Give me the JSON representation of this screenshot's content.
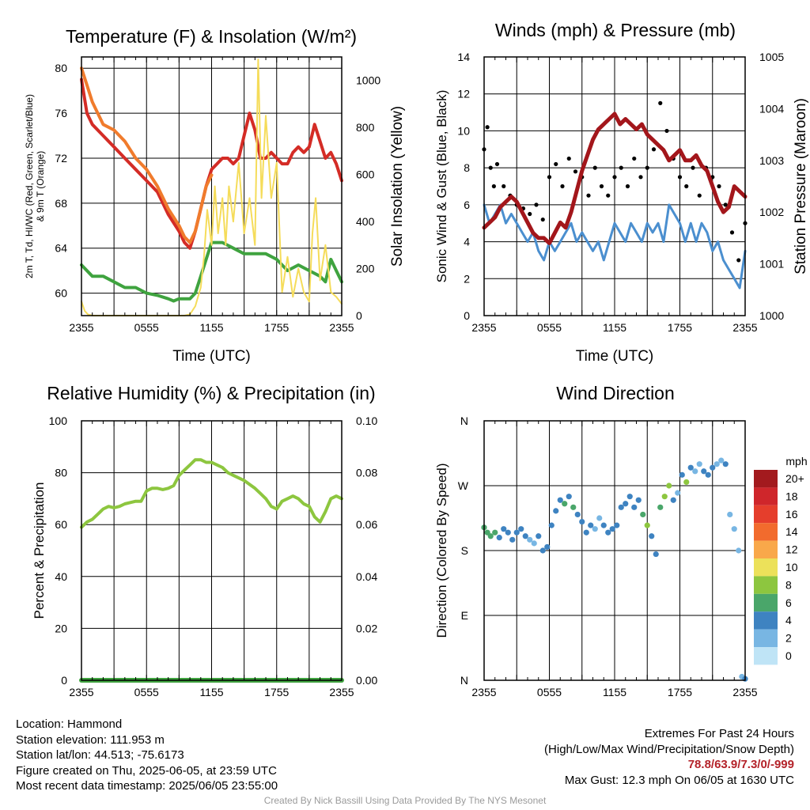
{
  "chart_data": [
    {
      "type": "line",
      "title": "Temperature (F) & Insolation (W/m²)",
      "xlabel": "Time (UTC)",
      "ylabel_left": [
        "2m T, Td, HI/WC (Red, Green, Scarlet/Blue)",
        "& 9m T (Orange)"
      ],
      "ylabel_right": "Solar Insolation (Yellow)",
      "x_tick_labels": [
        "2355",
        "0555",
        "1155",
        "1755",
        "2355"
      ],
      "ylim_left": [
        58,
        81
      ],
      "yticks_left": [
        60,
        64,
        68,
        72,
        76,
        80
      ],
      "ylim_right": [
        0,
        1100
      ],
      "yticks_right": [
        0,
        200,
        400,
        600,
        800,
        1000
      ],
      "xlim_hours": [
        0,
        24
      ],
      "grid": true,
      "colors": {
        "red": "#d42c26",
        "orange": "#f07b2c",
        "green": "#3fa33f",
        "yellow": "#f5dc5a"
      },
      "series": [
        {
          "name": "2m T",
          "axis": "left",
          "color": "#d42c26",
          "width": 4,
          "x": [
            0,
            0.5,
            1,
            2,
            3,
            4,
            5,
            6,
            7,
            8,
            9,
            9.5,
            10,
            10.5,
            11,
            11.5,
            12,
            12.5,
            13,
            13.5,
            14,
            14.5,
            15,
            15.5,
            16,
            16.5,
            17,
            17.5,
            18,
            18.5,
            19,
            19.5,
            20,
            20.5,
            21,
            21.5,
            22,
            22.5,
            23,
            23.5,
            24
          ],
          "y": [
            79,
            76,
            75,
            74,
            73,
            72,
            71,
            70,
            69,
            67,
            65.5,
            64.5,
            64,
            65.5,
            67.5,
            69.5,
            71,
            71.5,
            72,
            72,
            71.5,
            72,
            74,
            76,
            74.5,
            72,
            72,
            72.5,
            72,
            71.5,
            71.5,
            72.5,
            73,
            72.5,
            73,
            75,
            73.5,
            72,
            72.5,
            71.5,
            70
          ]
        },
        {
          "name": "9m T",
          "axis": "left",
          "color": "#f07b2c",
          "width": 4,
          "x": [
            0,
            0.5,
            1,
            2,
            3,
            4,
            5,
            6,
            7,
            8,
            9,
            9.5,
            10,
            10.5,
            11,
            11.5,
            12
          ],
          "y": [
            80,
            78.5,
            77,
            75,
            74.5,
            73.5,
            72,
            71,
            69.5,
            67.5,
            66,
            65,
            64.5,
            65.5,
            67.5,
            69.5,
            70.5
          ]
        },
        {
          "name": "Td",
          "axis": "left",
          "color": "#3fa33f",
          "width": 4,
          "x": [
            0,
            1,
            2,
            3,
            4,
            5,
            6,
            7,
            8,
            8.5,
            9,
            10,
            10.5,
            11,
            11.5,
            12,
            13,
            14,
            15,
            16,
            17,
            18,
            19,
            20,
            21,
            22,
            22.5,
            23,
            23.5,
            24
          ],
          "y": [
            62.5,
            61.5,
            61.5,
            61,
            60.5,
            60.5,
            60,
            59.8,
            59.5,
            59.3,
            59.5,
            59.5,
            60,
            61.5,
            63,
            64.5,
            64.5,
            64,
            63.5,
            63.5,
            63.5,
            63,
            62,
            62.5,
            62,
            61.5,
            61,
            63,
            62,
            61
          ]
        },
        {
          "name": "Solar Insolation",
          "axis": "right",
          "color": "#f5dc5a",
          "width": 2,
          "x": [
            0,
            0.3,
            0.6,
            1,
            2,
            4,
            6,
            8,
            9,
            9.5,
            10,
            10.5,
            11,
            11.3,
            11.6,
            12,
            12.3,
            12.6,
            13,
            13.3,
            13.6,
            14,
            14.5,
            15,
            15.5,
            16,
            16.3,
            16.6,
            17,
            17.5,
            18,
            18.5,
            19,
            19.5,
            20,
            20.5,
            21,
            21.3,
            21.6,
            22,
            22.5,
            23,
            23.5,
            24
          ],
          "y": [
            60,
            20,
            5,
            0,
            0,
            0,
            0,
            0,
            0,
            0,
            5,
            40,
            120,
            250,
            450,
            300,
            550,
            350,
            500,
            300,
            550,
            400,
            650,
            350,
            500,
            300,
            1090,
            500,
            850,
            500,
            650,
            100,
            250,
            80,
            200,
            100,
            60,
            350,
            500,
            150,
            300,
            100,
            80,
            50
          ]
        }
      ]
    },
    {
      "type": "line",
      "title": "Winds (mph) & Pressure (mb)",
      "xlabel": "Time (UTC)",
      "ylabel_left": "Sonic Wind & Gust (Blue, Black)",
      "ylabel_right": "Station Pressure (Maroon)",
      "x_tick_labels": [
        "2355",
        "0555",
        "1155",
        "1755",
        "2355"
      ],
      "ylim_left": [
        0,
        14
      ],
      "yticks_left": [
        0,
        2,
        4,
        6,
        8,
        10,
        12,
        14
      ],
      "ylim_right": [
        1000,
        1005
      ],
      "yticks_right": [
        1000,
        1001,
        1002,
        1003,
        1004,
        1005
      ],
      "xlim_hours": [
        0,
        24
      ],
      "grid": true,
      "colors": {
        "wind": "#4b8fcf",
        "gust": "#000000",
        "pressure": "#a3161b"
      },
      "series": [
        {
          "name": "Sonic Wind",
          "axis": "left",
          "color": "#4b8fcf",
          "width": 3,
          "x": [
            0,
            0.5,
            1,
            1.5,
            2,
            2.5,
            3,
            3.5,
            4,
            4.5,
            5,
            5.5,
            6,
            6.5,
            7,
            7.5,
            8,
            8.5,
            9,
            9.5,
            10,
            10.5,
            11,
            11.5,
            12,
            12.5,
            13,
            13.5,
            14,
            14.5,
            15,
            15.5,
            16,
            16.5,
            17,
            17.5,
            18,
            18.5,
            19,
            19.5,
            20,
            20.5,
            21,
            21.5,
            22,
            22.5,
            23,
            23.5,
            24
          ],
          "y": [
            6,
            5,
            5.5,
            6,
            5,
            5.5,
            5,
            4.5,
            4,
            4.5,
            3.5,
            3,
            4,
            3.5,
            4,
            4.5,
            5,
            4,
            4.5,
            4,
            3.5,
            4,
            3,
            4,
            5,
            4.5,
            4,
            5,
            4.5,
            4,
            5,
            4.5,
            5,
            4,
            6,
            5.5,
            5,
            4,
            5,
            4,
            5,
            4.5,
            3.5,
            4,
            3,
            2.5,
            2,
            1.5,
            3.5
          ]
        },
        {
          "name": "Gust",
          "axis": "left",
          "color": "#000000",
          "marker": "dot",
          "x": [
            0,
            0.3,
            0.6,
            0.9,
            1.2,
            1.8,
            2.4,
            3,
            3.6,
            4.2,
            4.8,
            5.4,
            6,
            6.6,
            7.2,
            7.8,
            8.4,
            9,
            9.6,
            10.2,
            10.8,
            11.4,
            12,
            12.6,
            13.2,
            13.8,
            14.4,
            15,
            15.6,
            16.2,
            16.8,
            17.4,
            18,
            18.6,
            19.2,
            19.8,
            20.4,
            21,
            21.6,
            22.2,
            22.8,
            23.4,
            24
          ],
          "y": [
            9,
            10.2,
            8,
            7,
            8.2,
            7,
            6.5,
            6,
            5.8,
            5.5,
            6,
            5.2,
            7.5,
            8.2,
            7,
            8.5,
            7.8,
            7.5,
            6.5,
            8,
            7,
            6.5,
            7.5,
            8,
            7,
            8.5,
            7.5,
            8,
            9,
            11.5,
            10,
            8.5,
            7.5,
            7,
            8,
            6.5,
            8,
            7.5,
            7,
            6,
            4.5,
            3,
            5
          ]
        },
        {
          "name": "Station Pressure",
          "axis": "right",
          "color": "#a3161b",
          "width": 5,
          "x": [
            0,
            0.5,
            1,
            1.5,
            2,
            2.5,
            3,
            3.5,
            4,
            4.5,
            5,
            5.5,
            6,
            6.5,
            7,
            7.5,
            8,
            8.5,
            9,
            9.5,
            10,
            10.5,
            11,
            11.5,
            12,
            12.5,
            13,
            13.5,
            14,
            14.5,
            15,
            15.5,
            16,
            16.5,
            17,
            17.5,
            18,
            18.5,
            19,
            19.5,
            20,
            20.5,
            21,
            21.5,
            22,
            22.5,
            23,
            23.5,
            24
          ],
          "y": [
            1001.7,
            1001.8,
            1001.9,
            1002.1,
            1002.2,
            1002.3,
            1002.2,
            1002.0,
            1001.8,
            1001.6,
            1001.5,
            1001.5,
            1001.4,
            1001.6,
            1001.8,
            1001.7,
            1002.0,
            1002.4,
            1002.8,
            1003.1,
            1003.4,
            1003.6,
            1003.7,
            1003.8,
            1003.9,
            1003.7,
            1003.8,
            1003.7,
            1003.6,
            1003.7,
            1003.5,
            1003.4,
            1003.3,
            1003.2,
            1003.0,
            1003.1,
            1003.2,
            1003.0,
            1003.0,
            1003.1,
            1002.9,
            1002.8,
            1002.5,
            1002.2,
            1002.0,
            1002.1,
            1002.5,
            1002.4,
            1002.3
          ]
        }
      ]
    },
    {
      "type": "line",
      "title": "Relative Humidity (%) & Precipitation (in)",
      "xlabel": "",
      "ylabel_left": "Percent & Precipitation",
      "x_tick_labels": [
        "2355",
        "0555",
        "1155",
        "1755",
        "2355"
      ],
      "ylim_left": [
        0,
        100
      ],
      "yticks_left": [
        0,
        20,
        40,
        60,
        80,
        100
      ],
      "ylim_right": [
        0,
        0.1
      ],
      "yticks_right": [
        "0.00",
        "0.02",
        "0.04",
        "0.06",
        "0.08",
        "0.10"
      ],
      "xlim_hours": [
        0,
        24
      ],
      "grid": true,
      "colors": {
        "rh": "#8dc63f",
        "precip": "#3fa33f"
      },
      "series": [
        {
          "name": "RH",
          "axis": "left",
          "color": "#8dc63f",
          "width": 4,
          "x": [
            0,
            0.5,
            1,
            1.5,
            2,
            2.5,
            3,
            3.5,
            4,
            4.5,
            5,
            5.5,
            6,
            6.5,
            7,
            7.5,
            8,
            8.5,
            9,
            9.5,
            10,
            10.5,
            11,
            11.5,
            12,
            12.5,
            13,
            13.5,
            14,
            14.5,
            15,
            15.5,
            16,
            16.5,
            17,
            17.5,
            18,
            18.5,
            19,
            19.5,
            20,
            20.5,
            21,
            21.5,
            22,
            22.5,
            23,
            23.5,
            24
          ],
          "y": [
            59,
            61,
            62,
            64,
            66,
            67,
            66.5,
            67,
            68,
            68.5,
            69,
            69,
            73,
            74,
            74,
            73.5,
            74,
            75,
            79,
            81,
            83,
            85,
            85,
            84,
            84,
            83,
            82,
            80,
            79,
            78,
            77,
            75.5,
            74,
            72,
            70,
            67,
            66,
            69,
            70,
            71,
            70,
            68,
            67,
            63,
            61,
            65,
            70,
            71,
            70
          ]
        },
        {
          "name": "Precipitation",
          "axis": "right",
          "color": "#3fa33f",
          "width": 6,
          "x": [
            0,
            24
          ],
          "y": [
            0,
            0
          ]
        }
      ]
    },
    {
      "type": "scatter",
      "title": "Wind Direction",
      "xlabel": "",
      "ylabel_left": "Direction (Colored By Speed)",
      "x_tick_labels": [
        "2355",
        "0555",
        "1155",
        "1755",
        "2355"
      ],
      "y_tick_labels": [
        "N",
        "E",
        "S",
        "W",
        "N"
      ],
      "ylim_deg": [
        0,
        360
      ],
      "xlim_hours": [
        0,
        24
      ],
      "grid": true,
      "legend": {
        "title": "mph",
        "position": "right",
        "labels": [
          "20+",
          "18",
          "16",
          "14",
          "12",
          "10",
          "8",
          "6",
          "4",
          "2",
          "0"
        ],
        "colors": [
          "#a31a1e",
          "#cf262b",
          "#e53e2c",
          "#f26b2d",
          "#f9a84a",
          "#ece15a",
          "#8dc63f",
          "#4aa66a",
          "#3e83c1",
          "#78b6e3",
          "#bfe4f6"
        ]
      },
      "points": {
        "x": [
          0,
          0.3,
          0.6,
          1,
          1.4,
          1.8,
          2.2,
          2.6,
          3,
          3.4,
          3.8,
          4.2,
          4.6,
          5,
          5.4,
          5.8,
          6.2,
          6.6,
          7,
          7.4,
          7.8,
          8.2,
          8.6,
          9,
          9.4,
          9.8,
          10.2,
          10.6,
          11,
          11.4,
          11.8,
          12.2,
          12.6,
          13,
          13.4,
          13.8,
          14.2,
          14.6,
          15,
          15.4,
          15.8,
          16.2,
          16.6,
          17,
          17.4,
          17.8,
          18.2,
          18.6,
          19,
          19.4,
          19.8,
          20.2,
          20.6,
          21,
          21.4,
          21.8,
          22.2,
          22.6,
          23,
          23.4,
          23.7,
          24
        ],
        "deg": [
          212,
          205,
          200,
          205,
          198,
          210,
          205,
          195,
          205,
          210,
          200,
          195,
          190,
          200,
          180,
          185,
          215,
          235,
          250,
          245,
          255,
          240,
          230,
          220,
          205,
          215,
          210,
          225,
          215,
          205,
          210,
          215,
          240,
          245,
          255,
          240,
          250,
          230,
          215,
          200,
          175,
          240,
          255,
          270,
          250,
          260,
          285,
          275,
          295,
          290,
          300,
          290,
          285,
          295,
          300,
          305,
          300,
          230,
          210,
          180,
          5,
          2
        ],
        "speed": [
          6,
          6,
          5,
          5,
          4,
          4,
          4,
          4,
          4,
          3,
          3,
          2,
          2,
          4,
          4,
          4,
          4,
          4,
          4,
          5,
          4,
          6,
          4,
          4,
          4,
          3,
          2,
          2,
          4,
          4,
          4,
          4,
          4,
          4,
          4,
          4,
          4,
          6,
          8,
          4,
          4,
          6,
          7,
          8,
          4,
          2,
          4,
          8,
          4,
          2,
          2,
          3,
          4,
          4,
          2,
          2,
          4,
          2,
          2,
          2,
          2,
          4
        ]
      }
    }
  ],
  "info_left": [
    "Location: Hammond",
    "Station elevation: 111.953 m",
    "Station lat/lon: 44.513; -75.6173",
    "Figure created on Thu, 2025-06-05, at 23:59 UTC",
    "Most recent data timestamp: 2025/06/05 23:55:00"
  ],
  "extremes": {
    "title": "Extremes For Past 24 Hours",
    "subtitle": "(High/Low/Max Wind/Precipitation/Snow Depth)",
    "values": "78.8/63.9/7.3/0/-999",
    "max_gust": "Max Gust: 12.3 mph On 06/05 at 1630 UTC"
  },
  "credit": "Created By Nick Bassill Using Data Provided By The NYS Mesonet"
}
